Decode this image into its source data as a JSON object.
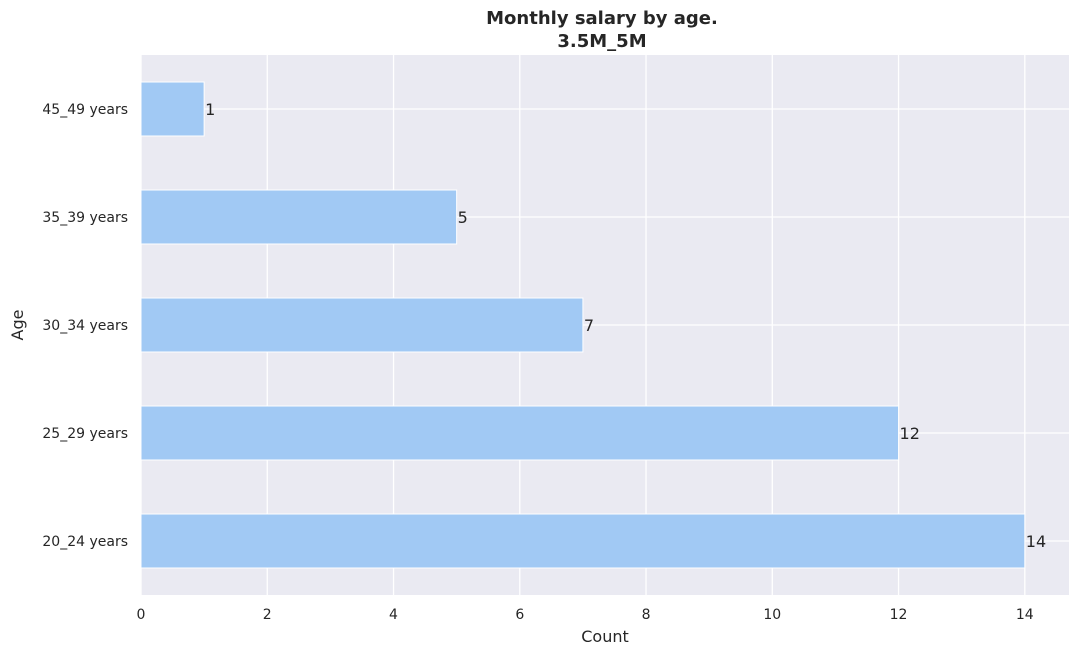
{
  "chart_data": {
    "type": "bar",
    "orientation": "horizontal",
    "title_lines": [
      "Monthly salary by age.",
      "3.5M_5M"
    ],
    "categories": [
      "20_24 years",
      "25_29 years",
      "30_34 years",
      "35_39 years",
      "45_49 years"
    ],
    "values": [
      14,
      12,
      7,
      5,
      1
    ],
    "xlabel": "Count",
    "ylabel": "Age",
    "xlim": [
      0,
      14.7
    ],
    "xticks": [
      0,
      2,
      4,
      6,
      8,
      10,
      12,
      14
    ],
    "grid": true,
    "legend": "none",
    "bar_color": "#a1c9f4",
    "background_color": "#eaeaf2",
    "grid_color": "#ffffff"
  }
}
